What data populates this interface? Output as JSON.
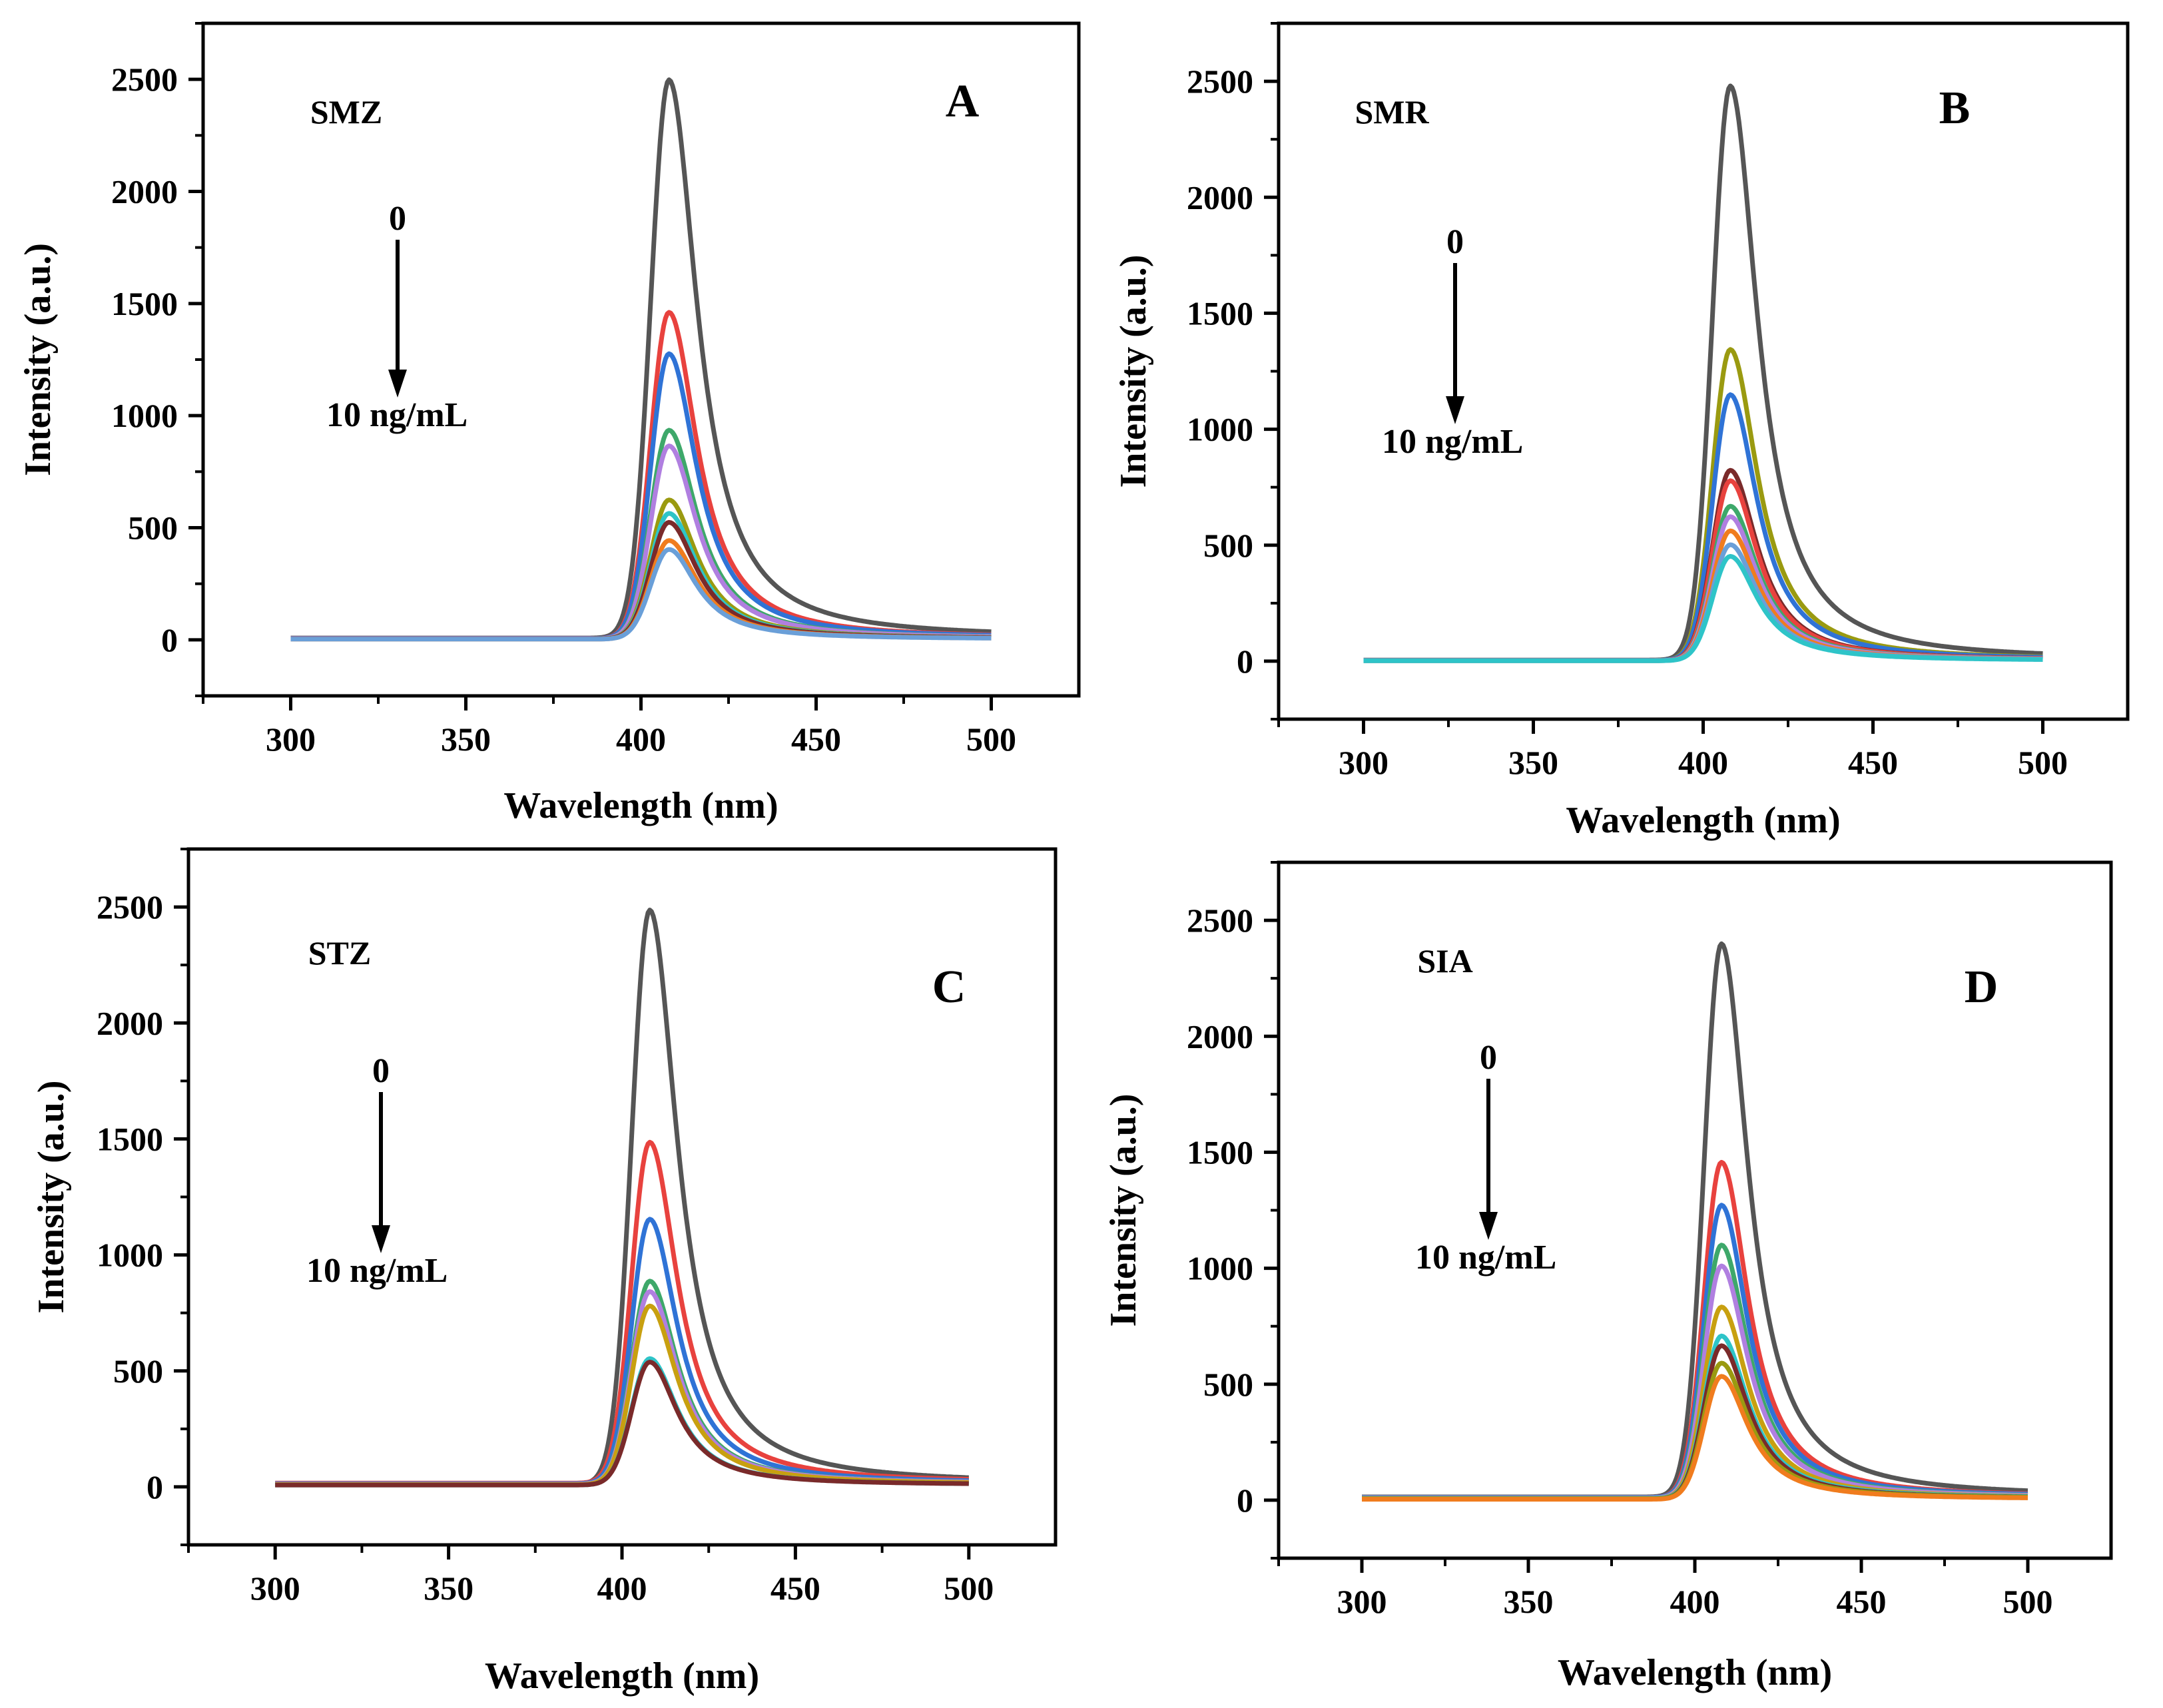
{
  "chart_data": [
    {
      "type": "line",
      "panel": "A",
      "analyte": "SMZ",
      "arrow_start_label": "0",
      "arrow_end_label": "10 ng/mL",
      "xlabel": "Wavelength  (nm)",
      "ylabel": "Intensity (a.u.)",
      "xlim": [
        275,
        525
      ],
      "ylim": [
        -250,
        2750
      ],
      "xticks": [
        "300",
        "350",
        "400",
        "450",
        "500"
      ],
      "yticks": [
        "0",
        "500",
        "1000",
        "1500",
        "2000",
        "2500"
      ],
      "peak_nm": 408,
      "series": [
        {
          "name": "c1",
          "color": "#555555",
          "peak": 2490,
          "baseline": 8
        },
        {
          "name": "c2",
          "color": "#e8423e",
          "peak": 1455,
          "baseline": 6
        },
        {
          "name": "c3",
          "color": "#2f73d6",
          "peak": 1270,
          "baseline": 6
        },
        {
          "name": "c4",
          "color": "#3ea86a",
          "peak": 930,
          "baseline": 5
        },
        {
          "name": "c5",
          "color": "#b07fe0",
          "peak": 860,
          "baseline": 5
        },
        {
          "name": "c6",
          "color": "#9a9a10",
          "peak": 620,
          "baseline": 4
        },
        {
          "name": "c7",
          "color": "#2ec4c8",
          "peak": 560,
          "baseline": 4
        },
        {
          "name": "c8",
          "color": "#7a2a2a",
          "peak": 520,
          "baseline": 4
        },
        {
          "name": "c9",
          "color": "#f07c1e",
          "peak": 440,
          "baseline": 3
        },
        {
          "name": "c10",
          "color": "#6a9fd8",
          "peak": 400,
          "baseline": 3
        }
      ]
    },
    {
      "type": "line",
      "panel": "B",
      "analyte": "SMR",
      "arrow_start_label": "0",
      "arrow_end_label": "10 ng/mL",
      "xlabel": "Wavelength  (nm)",
      "ylabel": "Intensity (a.u.)",
      "xlim": [
        275,
        525
      ],
      "ylim": [
        -250,
        2750
      ],
      "xticks": [
        "300",
        "350",
        "400",
        "450",
        "500"
      ],
      "yticks": [
        "0",
        "500",
        "1000",
        "1500",
        "2000",
        "2500"
      ],
      "peak_nm": 408,
      "series": [
        {
          "name": "c1",
          "color": "#555555",
          "peak": 2475,
          "baseline": 5
        },
        {
          "name": "c2",
          "color": "#9a9a10",
          "peak": 1340,
          "baseline": 4
        },
        {
          "name": "c3",
          "color": "#2f73d6",
          "peak": 1145,
          "baseline": 4
        },
        {
          "name": "c4",
          "color": "#7a2a2a",
          "peak": 820,
          "baseline": 3
        },
        {
          "name": "c5",
          "color": "#e8423e",
          "peak": 775,
          "baseline": 3
        },
        {
          "name": "c6",
          "color": "#3ea86a",
          "peak": 665,
          "baseline": 3
        },
        {
          "name": "c7",
          "color": "#b07fe0",
          "peak": 620,
          "baseline": 3
        },
        {
          "name": "c8",
          "color": "#f07c1e",
          "peak": 560,
          "baseline": 2
        },
        {
          "name": "c9",
          "color": "#6a9fd8",
          "peak": 500,
          "baseline": 2
        },
        {
          "name": "c10",
          "color": "#2ec4c8",
          "peak": 450,
          "baseline": 2
        }
      ]
    },
    {
      "type": "line",
      "panel": "C",
      "analyte": "STZ",
      "arrow_start_label": "0",
      "arrow_end_label": "10 ng/mL",
      "xlabel": "Wavelength  (nm)",
      "ylabel": "Intensity (a.u.)",
      "xlim": [
        275,
        525
      ],
      "ylim": [
        -250,
        2750
      ],
      "xticks": [
        "300",
        "350",
        "400",
        "450",
        "500"
      ],
      "yticks": [
        "0",
        "500",
        "1000",
        "1500",
        "2000",
        "2500"
      ],
      "peak_nm": 408,
      "series": [
        {
          "name": "c1",
          "color": "#555555",
          "peak": 2475,
          "baseline": 12
        },
        {
          "name": "c2",
          "color": "#e8423e",
          "peak": 1470,
          "baseline": 16
        },
        {
          "name": "c3",
          "color": "#2f73d6",
          "peak": 1140,
          "baseline": 14
        },
        {
          "name": "c4",
          "color": "#3ea86a",
          "peak": 875,
          "baseline": 12
        },
        {
          "name": "c5",
          "color": "#b07fe0",
          "peak": 830,
          "baseline": 12
        },
        {
          "name": "c6",
          "color": "#c8a010",
          "peak": 770,
          "baseline": 10
        },
        {
          "name": "c7",
          "color": "#2ec4c8",
          "peak": 545,
          "baseline": 8
        },
        {
          "name": "c8",
          "color": "#7a2a2a",
          "peak": 530,
          "baseline": 8
        }
      ]
    },
    {
      "type": "line",
      "panel": "D",
      "analyte": "SIA",
      "arrow_start_label": "0",
      "arrow_end_label": "10 ng/mL",
      "xlabel": "Wavelength  (nm)",
      "ylabel": "Intensity (a.u.)",
      "xlim": [
        275,
        525
      ],
      "ylim": [
        -250,
        2750
      ],
      "xticks": [
        "300",
        "350",
        "400",
        "450",
        "500"
      ],
      "yticks": [
        "0",
        "500",
        "1000",
        "1500",
        "2000",
        "2500"
      ],
      "peak_nm": 408,
      "series": [
        {
          "name": "c1",
          "color": "#555555",
          "peak": 2385,
          "baseline": 14
        },
        {
          "name": "c2",
          "color": "#e8423e",
          "peak": 1445,
          "baseline": 12
        },
        {
          "name": "c3",
          "color": "#2f73d6",
          "peak": 1260,
          "baseline": 12
        },
        {
          "name": "c4",
          "color": "#3ea86a",
          "peak": 1090,
          "baseline": 10
        },
        {
          "name": "c5",
          "color": "#b07fe0",
          "peak": 1000,
          "baseline": 10
        },
        {
          "name": "c6",
          "color": "#c8a010",
          "peak": 825,
          "baseline": 8
        },
        {
          "name": "c7",
          "color": "#2ec4c8",
          "peak": 700,
          "baseline": 8
        },
        {
          "name": "c8",
          "color": "#7a2a2a",
          "peak": 660,
          "baseline": 6
        },
        {
          "name": "c9",
          "color": "#9a9a10",
          "peak": 585,
          "baseline": 6
        },
        {
          "name": "c10",
          "color": "#f07c1e",
          "peak": 530,
          "baseline": 4
        }
      ]
    }
  ]
}
